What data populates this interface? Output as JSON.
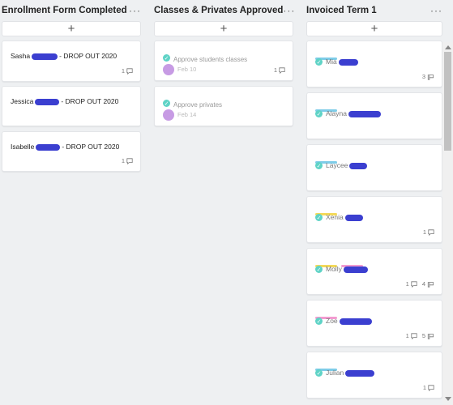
{
  "columns": [
    {
      "title": "Enrollment Form Completed",
      "more": "···",
      "add": "+",
      "cards": [
        {
          "first": "Sasha",
          "suffix": "- DROP OUT 2020",
          "comments": "1"
        },
        {
          "first": "Jessica",
          "suffix": "- DROP OUT 2020"
        },
        {
          "first": "Isabelle",
          "suffix": "- DROP OUT 2020",
          "comments": "1"
        }
      ]
    },
    {
      "title": "Classes & Privates Approved",
      "more": "···",
      "add": "+",
      "cards": [
        {
          "title": "Approve students classes",
          "date": "Feb 10",
          "comments": "1"
        },
        {
          "title": "Approve privates",
          "date": "Feb 14"
        }
      ]
    },
    {
      "title": "Invoiced Term 1",
      "more": "···",
      "add": "+",
      "cards": [
        {
          "name": "Mia",
          "attachments": "3"
        },
        {
          "name": "Alayna"
        },
        {
          "name": "Laycee"
        },
        {
          "name": "Xenia",
          "comments": "1"
        },
        {
          "name": "Molly",
          "comments": "1",
          "attachments": "4"
        },
        {
          "name": "Zoe",
          "comments": "1",
          "attachments": "5"
        },
        {
          "name": "Julian",
          "comments": "1"
        }
      ]
    }
  ],
  "colors": {
    "blue_tag": "#7ecce8",
    "yellow_tag": "#f3d95a",
    "pink_tag": "#f29bd0",
    "check": "#5fd3c6",
    "avatar": "#c79be4",
    "redaction": "#3b3fd0"
  },
  "icons": {
    "comment": "comment-icon",
    "attachment": "attachment-icon",
    "check": "check-circle-icon",
    "add": "plus-icon",
    "more": "more-icon"
  }
}
